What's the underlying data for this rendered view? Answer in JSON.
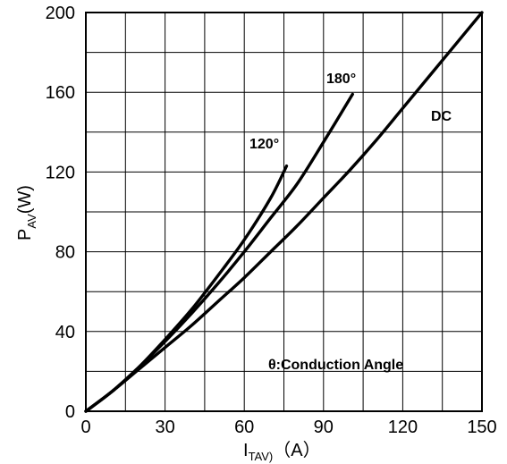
{
  "chart_data": {
    "type": "line",
    "xlabel": {
      "main": "I",
      "sub": "TAV)",
      "unit": "（A）"
    },
    "ylabel": {
      "main": "P",
      "sub": "AV",
      "unit": "(W)"
    },
    "xlim": [
      0,
      150
    ],
    "ylim": [
      0,
      200
    ],
    "xticks": [
      "0",
      "30",
      "60",
      "90",
      "120",
      "150"
    ],
    "yticks": [
      "0",
      "40",
      "80",
      "120",
      "160",
      "200"
    ],
    "grid": true,
    "x_minor_step": 15,
    "y_minor_step": 20,
    "series": [
      {
        "name": "120°",
        "points": [
          [
            0,
            0
          ],
          [
            10,
            10
          ],
          [
            20,
            22
          ],
          [
            30,
            36
          ],
          [
            40,
            51
          ],
          [
            50,
            68
          ],
          [
            60,
            86
          ],
          [
            70,
            107
          ],
          [
            76,
            123
          ]
        ]
      },
      {
        "name": "180°",
        "points": [
          [
            0,
            0
          ],
          [
            10,
            10
          ],
          [
            20,
            22
          ],
          [
            30,
            35
          ],
          [
            40,
            49
          ],
          [
            50,
            64
          ],
          [
            60,
            80
          ],
          [
            70,
            97
          ],
          [
            80,
            114
          ],
          [
            90,
            135
          ],
          [
            101,
            159
          ]
        ]
      },
      {
        "name": "DC",
        "points": [
          [
            0,
            0
          ],
          [
            10,
            10
          ],
          [
            20,
            21
          ],
          [
            30,
            32
          ],
          [
            40,
            43
          ],
          [
            50,
            55
          ],
          [
            60,
            67
          ],
          [
            70,
            80
          ],
          [
            80,
            93
          ],
          [
            90,
            107
          ],
          [
            100,
            121
          ],
          [
            110,
            136
          ],
          [
            120,
            152
          ],
          [
            130,
            168
          ],
          [
            140,
            184
          ],
          [
            150,
            200
          ]
        ]
      }
    ],
    "annotations": [
      "θ:Conduction Angle"
    ]
  }
}
